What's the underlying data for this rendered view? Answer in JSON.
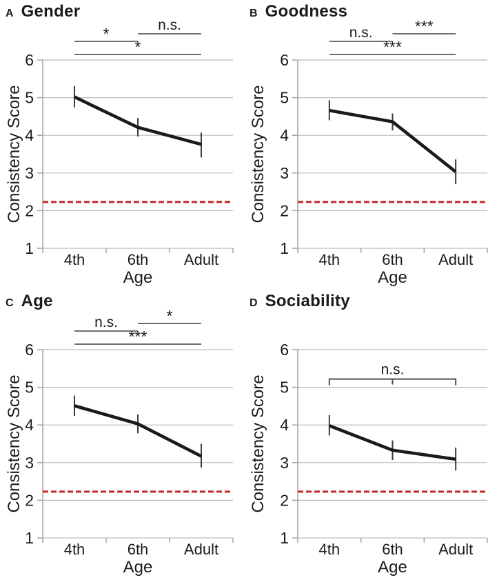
{
  "figure": {
    "description": "Four line-chart panels of consistency scores by age group",
    "shared_x_label": "Age",
    "shared_y_label": "Consistency Score",
    "categories": [
      "4th",
      "6th",
      "Adult"
    ],
    "ylim": [
      1,
      6
    ],
    "chance_reference_value": 2.23
  },
  "colors": {
    "series": "#1a1a1a",
    "reference": "#c4262c",
    "grid": "#bcbcbc",
    "axis": "#a3a3a3",
    "error_bar": "#3a3a3a",
    "sig": "#3f3f3f",
    "sig_bracket": "#4f4f4f",
    "text": "#1b1b1b"
  },
  "chart_data": [
    {
      "type": "line",
      "panel_label": "A",
      "title": "Gender",
      "categories": [
        "4th",
        "6th",
        "Adult"
      ],
      "x_axis_label": "Age",
      "y_axis_label": "Consistency Score",
      "ylim": [
        1,
        6
      ],
      "yticks": [
        1,
        2,
        3,
        4,
        5,
        6
      ],
      "series": [
        {
          "name": "mean consistency score",
          "values": [
            5.02,
            4.21,
            3.76
          ]
        }
      ],
      "error_bars": [
        [
          4.74,
          5.31
        ],
        [
          3.97,
          4.46
        ],
        [
          3.41,
          4.07
        ]
      ],
      "reference_line": 2.23,
      "significance": [
        {
          "between": [
            "4th",
            "6th"
          ],
          "label": "*",
          "position": "upper-left"
        },
        {
          "between": [
            "6th",
            "Adult"
          ],
          "label": "n.s.",
          "position": "upper-right"
        },
        {
          "between": [
            "4th",
            "Adult"
          ],
          "label": "*",
          "position": "span"
        }
      ]
    },
    {
      "type": "line",
      "panel_label": "B",
      "title": "Goodness",
      "categories": [
        "4th",
        "6th",
        "Adult"
      ],
      "x_axis_label": "Age",
      "y_axis_label": "Consistency Score",
      "ylim": [
        1,
        6
      ],
      "yticks": [
        1,
        2,
        3,
        4,
        5,
        6
      ],
      "series": [
        {
          "name": "mean consistency score",
          "values": [
            4.66,
            4.36,
            3.03
          ]
        }
      ],
      "error_bars": [
        [
          4.4,
          4.93
        ],
        [
          4.13,
          4.58
        ],
        [
          2.7,
          3.36
        ]
      ],
      "reference_line": 2.23,
      "significance": [
        {
          "between": [
            "4th",
            "6th"
          ],
          "label": "n.s.",
          "position": "upper-left"
        },
        {
          "between": [
            "6th",
            "Adult"
          ],
          "label": "***",
          "position": "upper-right"
        },
        {
          "between": [
            "4th",
            "Adult"
          ],
          "label": "***",
          "position": "span"
        }
      ]
    },
    {
      "type": "line",
      "panel_label": "C",
      "title": "Age",
      "categories": [
        "4th",
        "6th",
        "Adult"
      ],
      "x_axis_label": "Age",
      "y_axis_label": "Consistency Score",
      "ylim": [
        1,
        6
      ],
      "yticks": [
        1,
        2,
        3,
        4,
        5,
        6
      ],
      "series": [
        {
          "name": "mean consistency score",
          "values": [
            4.51,
            4.03,
            3.17
          ]
        }
      ],
      "error_bars": [
        [
          4.24,
          4.78
        ],
        [
          3.78,
          4.28
        ],
        [
          2.87,
          3.5
        ]
      ],
      "reference_line": 2.23,
      "significance": [
        {
          "between": [
            "4th",
            "6th"
          ],
          "label": "n.s.",
          "position": "upper-left"
        },
        {
          "between": [
            "6th",
            "Adult"
          ],
          "label": "*",
          "position": "upper-right"
        },
        {
          "between": [
            "4th",
            "Adult"
          ],
          "label": "***",
          "position": "span"
        }
      ]
    },
    {
      "type": "line",
      "panel_label": "D",
      "title": "Sociability",
      "categories": [
        "4th",
        "6th",
        "Adult"
      ],
      "x_axis_label": "Age",
      "y_axis_label": "Consistency Score",
      "ylim": [
        1,
        6
      ],
      "yticks": [
        1,
        2,
        3,
        4,
        5,
        6
      ],
      "series": [
        {
          "name": "mean consistency score",
          "values": [
            3.98,
            3.33,
            3.09
          ]
        }
      ],
      "error_bars": [
        [
          3.72,
          4.26
        ],
        [
          3.07,
          3.59
        ],
        [
          2.79,
          3.4
        ]
      ],
      "reference_line": 2.23,
      "significance": [
        {
          "between": [
            "4th",
            "Adult"
          ],
          "label": "n.s.",
          "position": "bracket",
          "value": 5.22,
          "middle_tick_at": "6th"
        }
      ]
    }
  ]
}
